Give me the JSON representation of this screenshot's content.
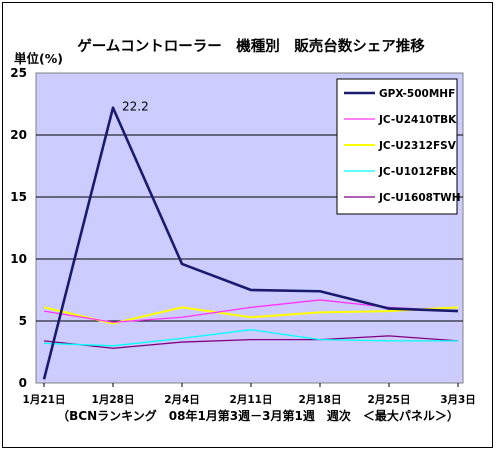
{
  "chart_data": {
    "type": "line",
    "title": "ゲームコントローラー　機種別　販売台数シェア推移",
    "ylabel": "単位(%)",
    "xlabel": "",
    "footnote": "（BCNランキング　08年1月第3週－3月第1週　週次　＜最大パネル＞）",
    "categories": [
      "1月21日",
      "1月28日",
      "2月4日",
      "2月11日",
      "2月18日",
      "2月25日",
      "3月3日"
    ],
    "x_tick_positions": [
      0,
      1,
      2,
      3,
      4,
      5,
      6
    ],
    "ylim": [
      0,
      25
    ],
    "yticks": [
      0,
      5,
      10,
      15,
      20,
      25
    ],
    "grid": true,
    "legend_position": "top-right",
    "series": [
      {
        "name": "GPX-500MHF",
        "color": "#1b1b6e",
        "width": 2.6,
        "values": [
          0.3,
          22.2,
          9.6,
          7.5,
          7.4,
          6.0,
          5.8
        ]
      },
      {
        "name": "JC-U2410TBK",
        "color": "#ff33ff",
        "width": 1.3,
        "values": [
          5.8,
          4.9,
          5.3,
          6.1,
          6.7,
          6.1,
          5.8
        ]
      },
      {
        "name": "JC-U2312FSV",
        "color": "#ffff00",
        "width": 2.0,
        "values": [
          6.1,
          4.8,
          6.1,
          5.3,
          5.7,
          5.8,
          6.1
        ]
      },
      {
        "name": "JC-U1012FBK",
        "color": "#00ffff",
        "width": 1.3,
        "values": [
          3.2,
          3.0,
          3.6,
          4.3,
          3.5,
          3.4,
          3.4
        ]
      },
      {
        "name": "JC-U1608TWH",
        "color": "#800080",
        "width": 1.3,
        "values": [
          3.4,
          2.8,
          3.3,
          3.5,
          3.5,
          3.8,
          3.4
        ]
      }
    ],
    "annotations": [
      {
        "series": "GPX-500MHF",
        "category": "1月28日",
        "text": "22.2"
      }
    ]
  },
  "colors": {
    "plot_background": "#ccccff",
    "gridline": "#000000",
    "axis": "#808080"
  }
}
